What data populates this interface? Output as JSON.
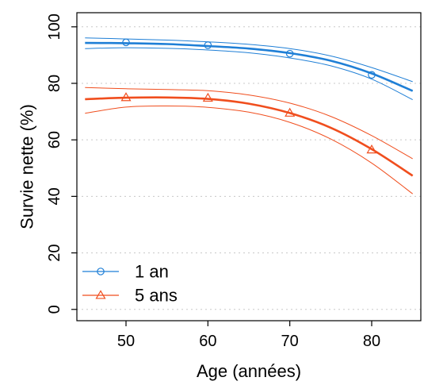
{
  "chart_data": {
    "type": "line",
    "xlabel": "Age (années)",
    "ylabel": "Survie nette (%)",
    "xlim": [
      44,
      86
    ],
    "ylim": [
      -4,
      105
    ],
    "xticks": [
      50,
      60,
      70,
      80
    ],
    "yticks": [
      0,
      20,
      40,
      60,
      80,
      100
    ],
    "grid": "horizontal dotted",
    "legend": "bottom-left",
    "series": [
      {
        "name": "1 an",
        "color": "#1f7fd6",
        "marker": "circle",
        "points": {
          "x": [
            50,
            60,
            70,
            80
          ],
          "y": [
            94.5,
            93.5,
            90.5,
            83
          ]
        },
        "curve": {
          "x": [
            45,
            50,
            55,
            60,
            65,
            70,
            75,
            80,
            85
          ],
          "y": [
            94.3,
            94.2,
            93.9,
            93.2,
            92.3,
            90.7,
            88.0,
            83.5,
            77.3
          ],
          "upper": [
            96.1,
            95.7,
            95.3,
            94.7,
            93.8,
            92.3,
            89.7,
            85.6,
            80.6
          ],
          "lower": [
            92.3,
            92.6,
            92.4,
            91.8,
            90.8,
            89.0,
            86.2,
            81.5,
            74.2
          ]
        }
      },
      {
        "name": "5 ans",
        "color": "#f04e1e",
        "marker": "triangle",
        "points": {
          "x": [
            50,
            60,
            70,
            80
          ],
          "y": [
            75,
            74.8,
            69.5,
            56.5
          ]
        },
        "curve": {
          "x": [
            45,
            50,
            55,
            60,
            65,
            70,
            75,
            80,
            85
          ],
          "y": [
            74.4,
            74.9,
            75.0,
            74.5,
            72.8,
            69.5,
            64.3,
            56.7,
            47.3
          ],
          "upper": [
            78.5,
            78.1,
            77.8,
            77.4,
            75.9,
            73.0,
            68.3,
            61.5,
            53.3
          ],
          "lower": [
            69.4,
            71.6,
            72.0,
            71.5,
            69.8,
            66.2,
            60.3,
            51.8,
            40.9
          ]
        }
      }
    ]
  }
}
